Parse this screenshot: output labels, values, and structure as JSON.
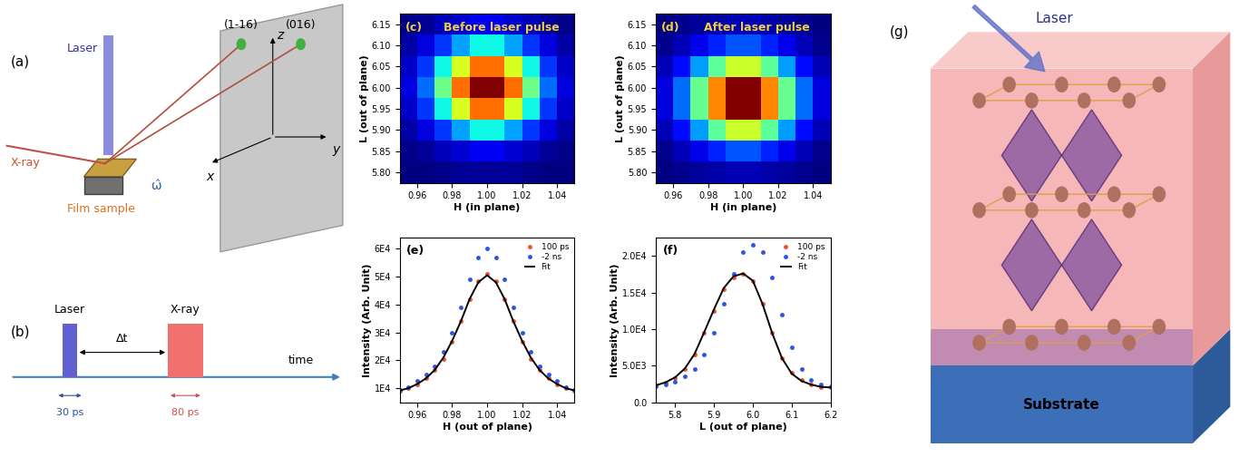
{
  "chart_data": [
    {
      "type": "heatmap",
      "label": "(c)",
      "title": "Before laser pulse",
      "x_label": "H (in plane)",
      "y_label": "L (out of plane)",
      "x_edges": [
        0.95,
        0.96,
        0.97,
        0.98,
        0.99,
        1.0,
        1.01,
        1.02,
        1.03,
        1.04,
        1.05
      ],
      "y_edges": [
        5.775,
        5.825,
        5.875,
        5.925,
        5.975,
        6.025,
        6.075,
        6.125,
        6.175
      ],
      "cells": [
        [
          5,
          5,
          6,
          7,
          7,
          7,
          7,
          6,
          5,
          5
        ],
        [
          6,
          7,
          10,
          12,
          15,
          15,
          12,
          10,
          7,
          6
        ],
        [
          8,
          13,
          22,
          32,
          40,
          40,
          32,
          22,
          13,
          8
        ],
        [
          11,
          22,
          40,
          63,
          80,
          80,
          63,
          40,
          22,
          11
        ],
        [
          13,
          27,
          51,
          80,
          100,
          100,
          80,
          51,
          27,
          13
        ],
        [
          11,
          22,
          40,
          63,
          80,
          80,
          63,
          40,
          22,
          11
        ],
        [
          8,
          13,
          22,
          32,
          40,
          40,
          32,
          22,
          13,
          8
        ],
        [
          6,
          7,
          10,
          12,
          15,
          15,
          12,
          10,
          7,
          6
        ]
      ],
      "xlim": [
        0.95,
        1.05
      ],
      "ylim": [
        5.775,
        6.175
      ],
      "xticks": [
        0.96,
        0.98,
        {
          "value": 1.0,
          "label": "1.00"
        },
        1.02,
        1.04
      ],
      "yticks": [
        {
          "value": 5.8,
          "label": "5.80"
        },
        5.85,
        {
          "value": 5.9,
          "label": "5.90"
        },
        5.95,
        {
          "value": 6.0,
          "label": "6.00"
        },
        6.05,
        {
          "value": 6.1,
          "label": "6.10"
        },
        6.15
      ]
    },
    {
      "type": "heatmap",
      "label": "(d)",
      "title": "After laser pulse",
      "x_label": "H (in plane)",
      "y_label": "L (out of plane)",
      "x_edges": [
        0.95,
        0.96,
        0.97,
        0.98,
        0.99,
        1.0,
        1.01,
        1.02,
        1.03,
        1.04,
        1.05
      ],
      "y_edges": [
        5.775,
        5.825,
        5.875,
        5.925,
        5.975,
        6.025,
        6.075,
        6.125,
        6.175
      ],
      "cells": [
        [
          5,
          6,
          7,
          8,
          9,
          9,
          8,
          7,
          6,
          5
        ],
        [
          6,
          9,
          13,
          18,
          22,
          22,
          18,
          13,
          9,
          6
        ],
        [
          9,
          16,
          28,
          43,
          54,
          54,
          43,
          28,
          16,
          9
        ],
        [
          12,
          24,
          44,
          68,
          87,
          87,
          68,
          44,
          24,
          12
        ],
        [
          12,
          24,
          44,
          68,
          87,
          87,
          68,
          44,
          24,
          12
        ],
        [
          9,
          16,
          28,
          43,
          54,
          54,
          43,
          28,
          16,
          9
        ],
        [
          6,
          9,
          13,
          18,
          22,
          22,
          18,
          13,
          9,
          6
        ],
        [
          5,
          6,
          7,
          8,
          9,
          9,
          8,
          7,
          6,
          5
        ]
      ],
      "xlim": [
        0.95,
        1.05
      ],
      "ylim": [
        5.775,
        6.175
      ],
      "xticks": [
        0.96,
        0.98,
        {
          "value": 1.0,
          "label": "1.00"
        },
        1.02,
        1.04
      ],
      "yticks": [
        {
          "value": 5.8,
          "label": "5.80"
        },
        5.85,
        {
          "value": 5.9,
          "label": "5.90"
        },
        5.95,
        {
          "value": 6.0,
          "label": "6.00"
        },
        6.05,
        {
          "value": 6.1,
          "label": "6.10"
        },
        6.15
      ]
    },
    {
      "type": "line",
      "label": "(e)",
      "x_label": "H (out of plane)",
      "y_label": "Intensity (Arb. Unit)",
      "x": [
        0.95,
        0.955,
        0.96,
        0.965,
        0.97,
        0.975,
        0.98,
        0.985,
        0.99,
        0.995,
        1.0,
        1.005,
        1.01,
        1.015,
        1.02,
        1.025,
        1.03,
        1.035,
        1.04,
        1.045,
        1.05
      ],
      "series": [
        {
          "name": "100 ps",
          "color": "#e8523a",
          "marker": "o",
          "line_style": "none",
          "values": [
            9000,
            10000,
            11500,
            13500,
            16500,
            20500,
            26500,
            34000,
            42000,
            48500,
            51000,
            48500,
            42000,
            34000,
            26500,
            20500,
            16500,
            13500,
            11500,
            10000,
            9000
          ]
        },
        {
          "name": "-2 ns",
          "color": "#2d54e6",
          "marker": "o",
          "line_style": "none",
          "values": [
            9500,
            10500,
            12500,
            15000,
            18000,
            23000,
            30000,
            39000,
            49000,
            57000,
            60000,
            57000,
            49000,
            39000,
            30000,
            23000,
            18000,
            15000,
            12500,
            10500,
            9500
          ]
        },
        {
          "name": "Fit",
          "color": "#000000",
          "marker": "none",
          "line_style": "solid",
          "values": [
            9200,
            10000,
            11500,
            13500,
            16500,
            21000,
            27000,
            34000,
            42000,
            48000,
            50500,
            48000,
            42000,
            34000,
            27000,
            21000,
            16500,
            13500,
            11500,
            10000,
            9200
          ]
        }
      ],
      "xlim": [
        0.95,
        1.05
      ],
      "ylim": [
        5000,
        64000
      ],
      "xticks": [
        0.96,
        0.98,
        {
          "value": 1.0,
          "label": "1.00"
        },
        1.02,
        1.04
      ],
      "yticks": [
        {
          "value": 10000,
          "label": "1E4"
        },
        {
          "value": 20000,
          "label": "2E4"
        },
        {
          "value": 30000,
          "label": "3E4"
        },
        {
          "value": 40000,
          "label": "4E4"
        },
        {
          "value": 50000,
          "label": "5E4"
        },
        {
          "value": 60000,
          "label": "6E4"
        }
      ],
      "legend": "upper right"
    },
    {
      "type": "line",
      "label": "(f)",
      "x_label": "L (out of plane)",
      "y_label": "Intensity (Arb. Unit)",
      "x": [
        5.75,
        5.775,
        5.8,
        5.825,
        5.85,
        5.875,
        5.9,
        5.925,
        5.95,
        5.975,
        6.0,
        6.025,
        6.05,
        6.075,
        6.1,
        6.125,
        6.15,
        6.175,
        6.2
      ],
      "series": [
        {
          "name": "100 ps",
          "color": "#e8523a",
          "marker": "o",
          "line_style": "none",
          "values": [
            2300,
            2700,
            3300,
            4500,
            6500,
            9500,
            12500,
            15500,
            17000,
            17500,
            16500,
            13500,
            9500,
            6000,
            4000,
            3000,
            2400,
            2100,
            2000
          ]
        },
        {
          "name": "-2 ns",
          "color": "#2d54e6",
          "marker": "o",
          "line_style": "none",
          "values": [
            2200,
            2400,
            2800,
            3500,
            4500,
            6500,
            9500,
            13500,
            17500,
            20500,
            21500,
            20500,
            17000,
            12000,
            7500,
            4500,
            3000,
            2400,
            2200
          ]
        },
        {
          "name": "Fit",
          "color": "#000000",
          "marker": "none",
          "line_style": "solid",
          "values": [
            2300,
            2700,
            3400,
            4600,
            6600,
            9600,
            12700,
            15600,
            17200,
            17600,
            16600,
            13400,
            9400,
            6000,
            3900,
            2900,
            2400,
            2100,
            2000
          ]
        }
      ],
      "xlim": [
        5.75,
        6.2
      ],
      "ylim": [
        0,
        22500
      ],
      "xticks": [
        5.8,
        5.9,
        6.0,
        6.1,
        6.2
      ],
      "yticks": [
        {
          "value": 0,
          "label": "0.0"
        },
        {
          "value": 5000,
          "label": "5.0E3"
        },
        {
          "value": 10000,
          "label": "1.0E4"
        },
        {
          "value": 15000,
          "label": "1.5E4"
        },
        {
          "value": 20000,
          "label": "2.0E4"
        }
      ],
      "legend": "upper right"
    }
  ],
  "diagrams": {
    "a": {
      "label": "(a)",
      "laser": "Laser",
      "xray": "X-ray",
      "sample": "Film sample",
      "peak1": "(1-16)",
      "peak2": "(016)",
      "x": "x",
      "y": "y",
      "z": "z",
      "omega": "ω̂"
    },
    "b": {
      "label": "(b)",
      "laser": "Laser",
      "xray": "X-ray",
      "delay": "Δt",
      "time": "time",
      "laser_width": "30 ps",
      "xray_width": "80 ps"
    },
    "g": {
      "label": "(g)",
      "laser": "Laser",
      "substrate": "Substrate"
    }
  }
}
